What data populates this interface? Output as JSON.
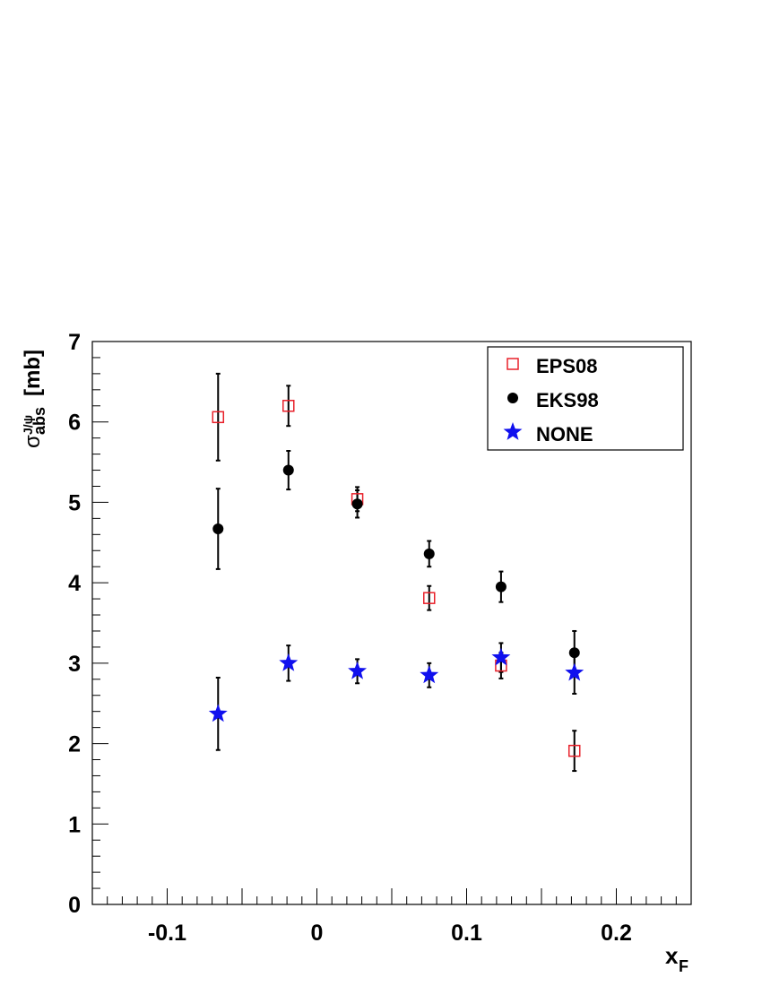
{
  "chart_data": {
    "type": "scatter",
    "xlabel": "x",
    "xlabel_sub": "F",
    "ylabel_sigma": "σ",
    "ylabel_sup": "J/ψ",
    "ylabel_sub": "abs",
    "ylabel_unit": "[mb]",
    "xlim": [
      -0.15,
      0.25
    ],
    "ylim": [
      0,
      7
    ],
    "x_ticks": [
      {
        "value": -0.1,
        "label": "-0.1"
      },
      {
        "value": 0,
        "label": "0"
      },
      {
        "value": 0.1,
        "label": "0.1"
      },
      {
        "value": 0.2,
        "label": "0.2"
      }
    ],
    "y_ticks": [
      {
        "value": 0,
        "label": "0"
      },
      {
        "value": 1,
        "label": "1"
      },
      {
        "value": 2,
        "label": "2"
      },
      {
        "value": 3,
        "label": "3"
      },
      {
        "value": 4,
        "label": "4"
      },
      {
        "value": 5,
        "label": "5"
      },
      {
        "value": 6,
        "label": "6"
      },
      {
        "value": 7,
        "label": "7"
      }
    ],
    "grid": false,
    "legend_position": "top-right",
    "series": [
      {
        "name": "EPS08",
        "marker": "open-square",
        "color": "#e8202a",
        "points": [
          {
            "x": -0.066,
            "y": 6.06,
            "err": 0.54
          },
          {
            "x": -0.019,
            "y": 6.2,
            "err": 0.25
          },
          {
            "x": 0.027,
            "y": 5.04,
            "err": 0.15
          },
          {
            "x": 0.075,
            "y": 3.81,
            "err": 0.15
          },
          {
            "x": 0.123,
            "y": 2.97,
            "err": 0.16
          },
          {
            "x": 0.172,
            "y": 1.91,
            "err": 0.25
          }
        ]
      },
      {
        "name": "EKS98",
        "marker": "filled-circle",
        "color": "#000000",
        "points": [
          {
            "x": -0.066,
            "y": 4.67,
            "err": 0.5
          },
          {
            "x": -0.019,
            "y": 5.4,
            "err": 0.24
          },
          {
            "x": 0.027,
            "y": 4.98,
            "err": 0.17
          },
          {
            "x": 0.075,
            "y": 4.36,
            "err": 0.16
          },
          {
            "x": 0.123,
            "y": 3.95,
            "err": 0.19
          },
          {
            "x": 0.172,
            "y": 3.13,
            "err": 0.27
          }
        ]
      },
      {
        "name": "NONE",
        "marker": "star",
        "color": "#1010ee",
        "points": [
          {
            "x": -0.066,
            "y": 2.37,
            "err": 0.45
          },
          {
            "x": -0.019,
            "y": 3.0,
            "err": 0.22
          },
          {
            "x": 0.027,
            "y": 2.9,
            "err": 0.15
          },
          {
            "x": 0.075,
            "y": 2.85,
            "err": 0.15
          },
          {
            "x": 0.123,
            "y": 3.07,
            "err": 0.18
          },
          {
            "x": 0.172,
            "y": 2.88,
            "err": 0.26
          }
        ]
      }
    ]
  }
}
